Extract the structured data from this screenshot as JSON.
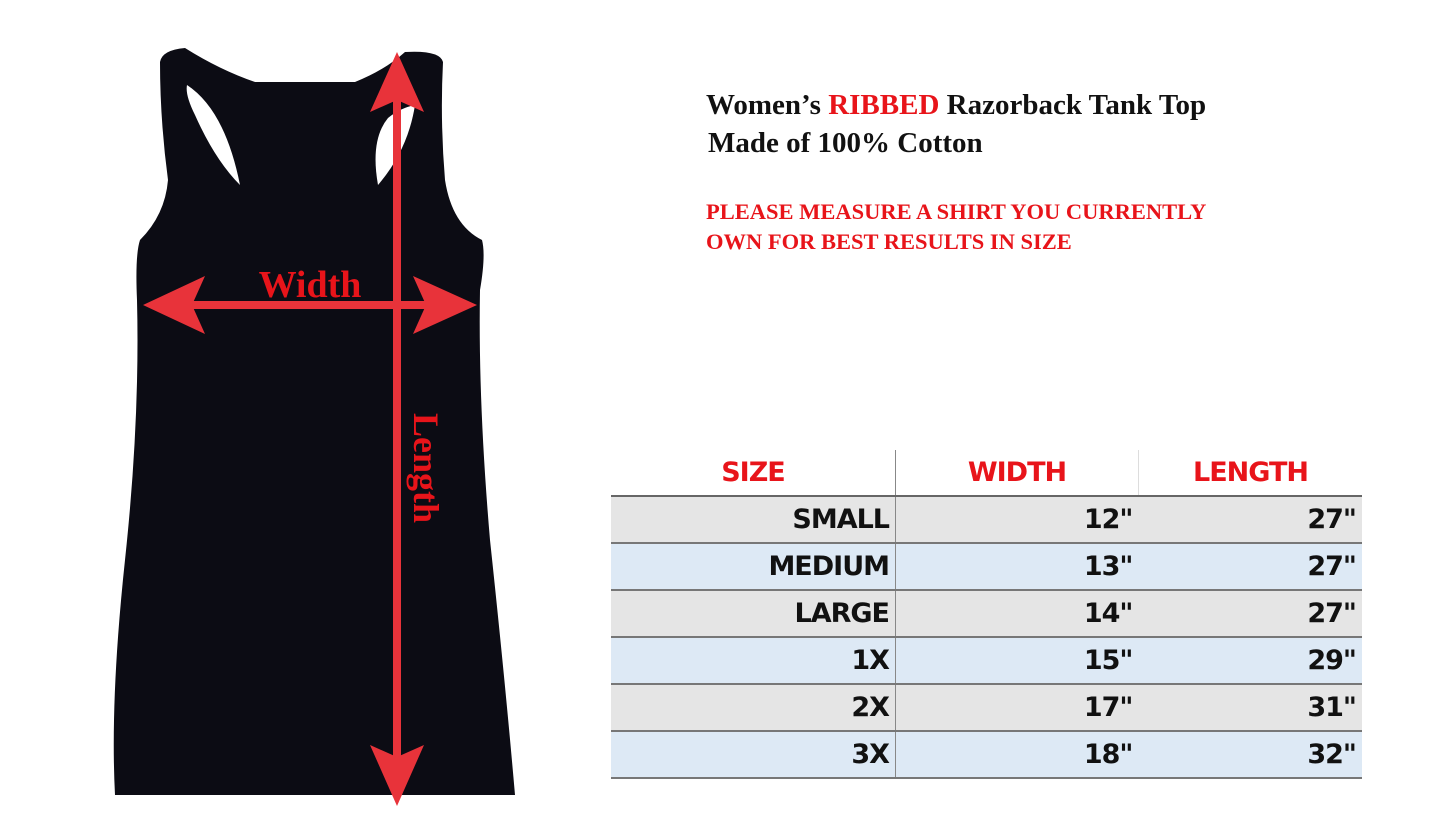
{
  "diagram": {
    "width_label": "Width",
    "length_label": "Length",
    "arrow_color": "#e8333a",
    "garment_color": "#0c0c14"
  },
  "heading": {
    "line1_pre": "Women’s ",
    "line1_emph": "RIBBED",
    "line1_post": " Razorback Tank Top",
    "line2": "Made of 100% Cotton"
  },
  "notice": {
    "line1": "PLEASE MEASURE A SHIRT YOU CURRENTLY",
    "line2": "OWN FOR BEST RESULTS IN SIZE"
  },
  "table": {
    "headers": [
      "SIZE",
      "WIDTH",
      "LENGTH"
    ],
    "rows": [
      [
        "SMALL",
        "12\"",
        "27\""
      ],
      [
        "MEDIUM",
        "13\"",
        "27\""
      ],
      [
        "LARGE",
        "14\"",
        "27\""
      ],
      [
        "1X",
        "15\"",
        "29\""
      ],
      [
        "2X",
        "17\"",
        "31\""
      ],
      [
        "3X",
        "18\"",
        "32\""
      ]
    ]
  }
}
